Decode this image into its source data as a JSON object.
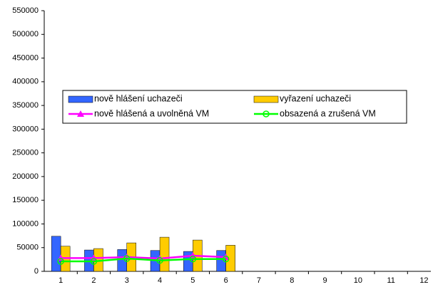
{
  "chart_data": {
    "type": "bar",
    "categories": [
      "1",
      "2",
      "3",
      "4",
      "5",
      "6",
      "7",
      "8",
      "9",
      "10",
      "11",
      "12"
    ],
    "series": [
      {
        "name": "nově hlášení uchazeči",
        "kind": "bar",
        "color": "#3366ff",
        "values": [
          74000,
          45000,
          46000,
          44000,
          42000,
          44000,
          null,
          null,
          null,
          null,
          null,
          null
        ]
      },
      {
        "name": "vyřazení uchazeči",
        "kind": "bar",
        "color": "#ffcc00",
        "values": [
          53000,
          48000,
          60000,
          72000,
          66000,
          55000,
          null,
          null,
          null,
          null,
          null,
          null
        ]
      },
      {
        "name": "nově hlášená a uvolněná VM",
        "kind": "line",
        "marker": "triangle",
        "color": "#ff00ff",
        "values": [
          28000,
          28000,
          30000,
          27000,
          33000,
          30000,
          null,
          null,
          null,
          null,
          null,
          null
        ]
      },
      {
        "name": "obsazená a zrušená VM",
        "kind": "line",
        "marker": "circle",
        "color": "#00ff00",
        "values": [
          21000,
          21000,
          27000,
          23000,
          26000,
          26000,
          null,
          null,
          null,
          null,
          null,
          null
        ]
      }
    ],
    "ylim": [
      0,
      550000
    ],
    "yticks": [
      0,
      50000,
      100000,
      150000,
      200000,
      250000,
      300000,
      350000,
      400000,
      450000,
      500000,
      550000
    ],
    "grid": false
  }
}
